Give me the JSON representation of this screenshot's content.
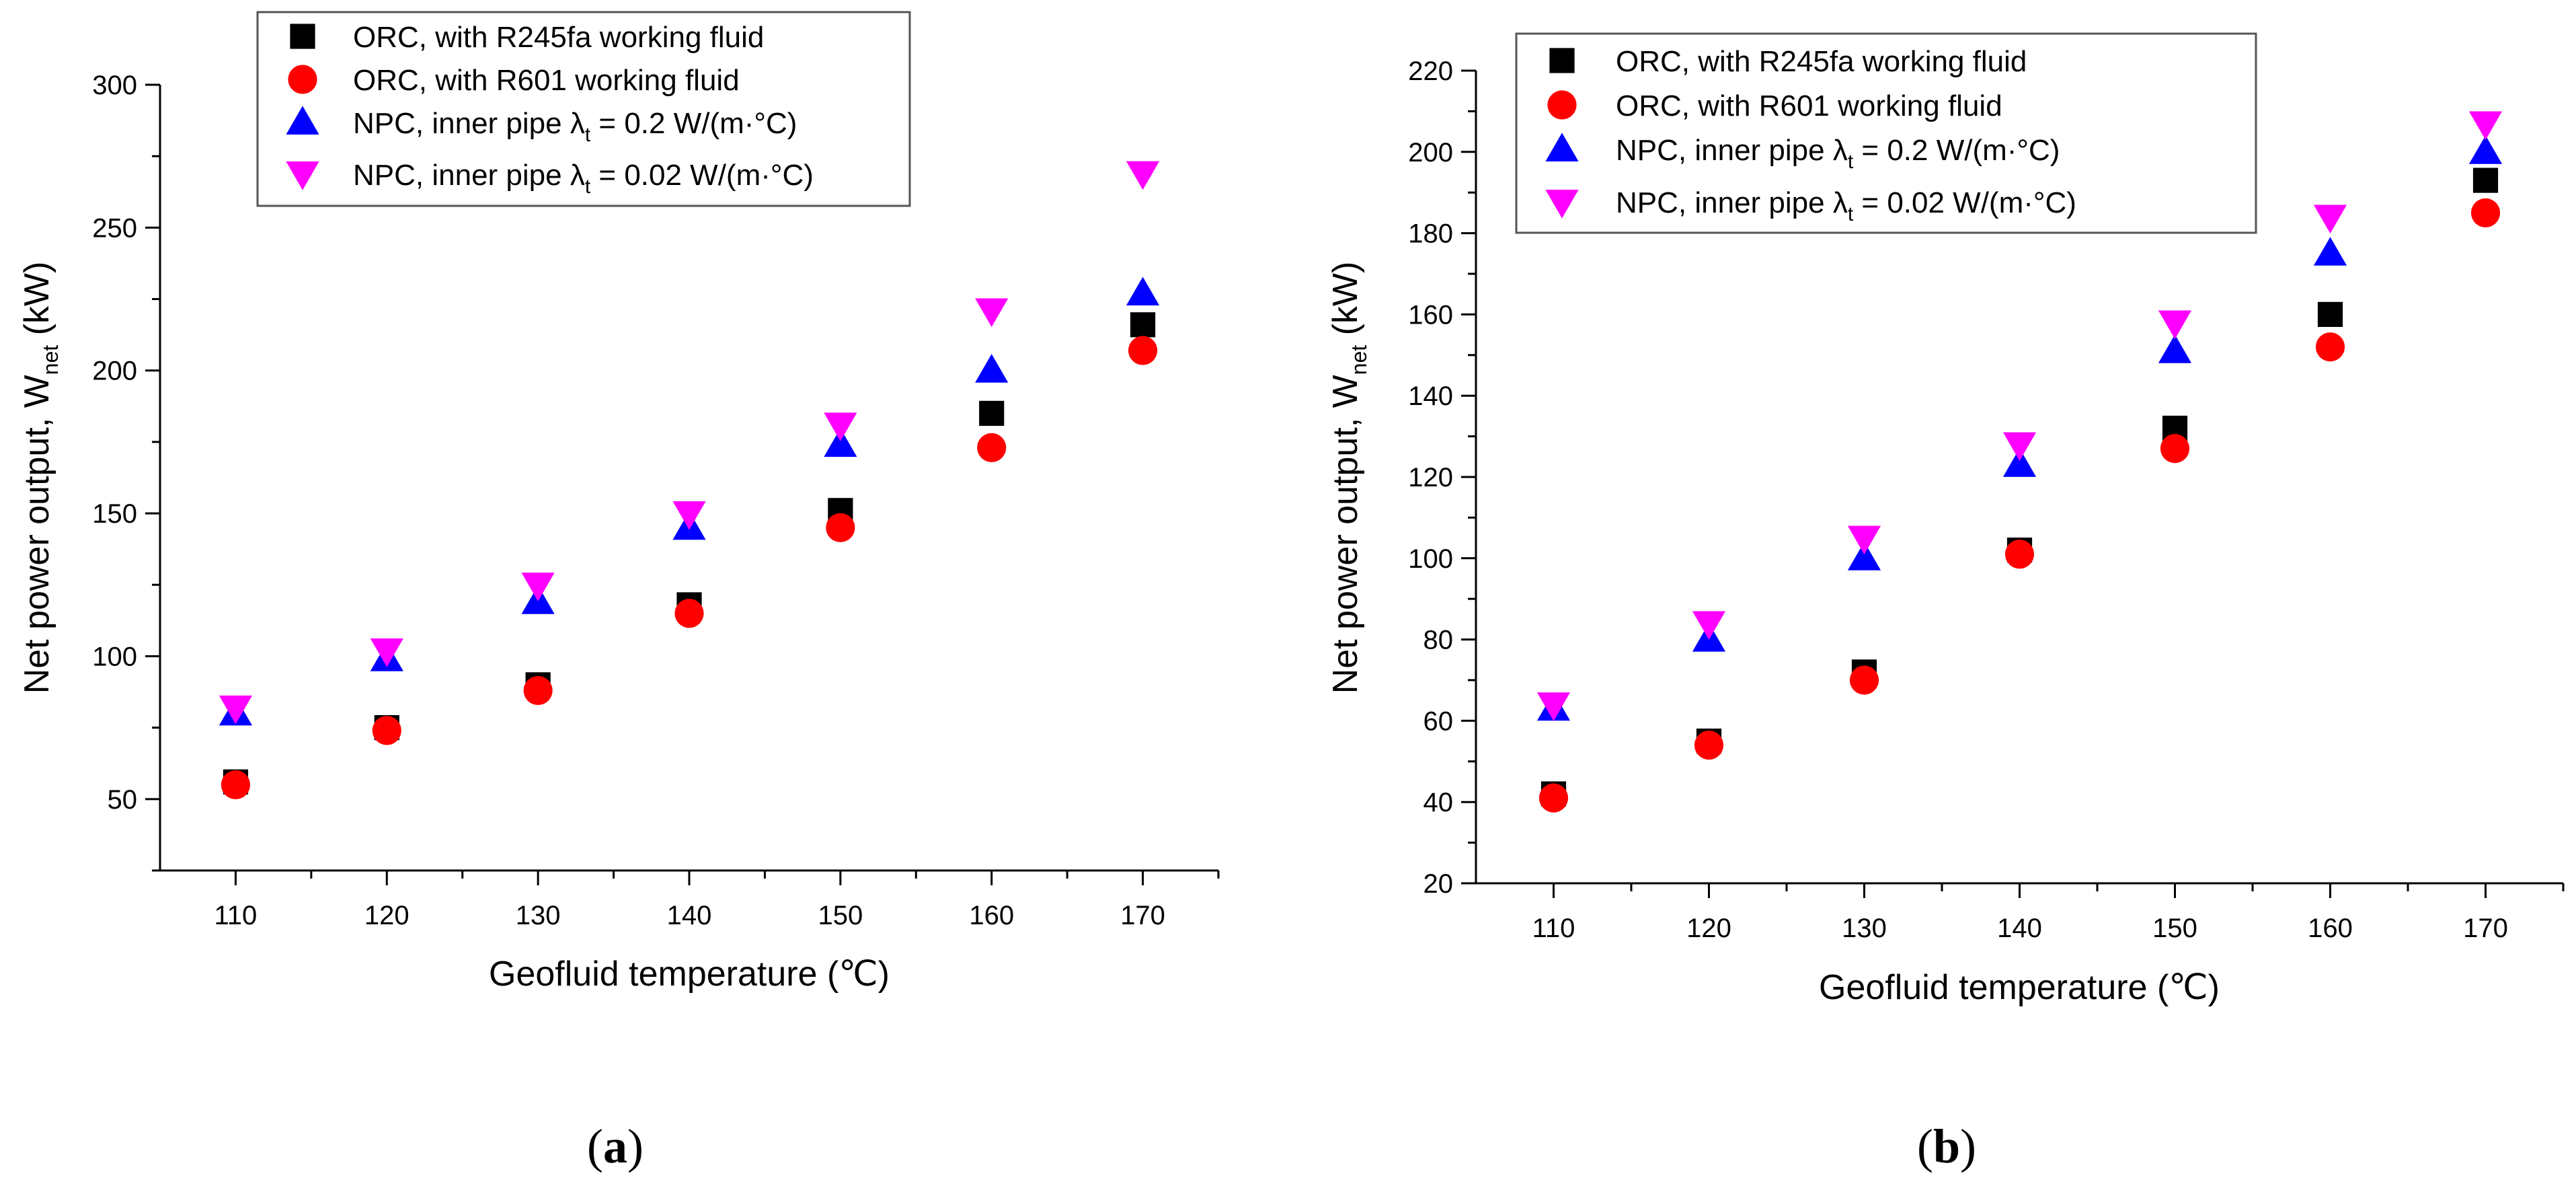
{
  "series_styles": [
    {
      "marker": "square",
      "color": "#000000"
    },
    {
      "marker": "circle",
      "color": "#ff0000"
    },
    {
      "marker": "triangle-up",
      "color": "#0000ff"
    },
    {
      "marker": "triangle-down",
      "color": "#ff00ff"
    }
  ],
  "chart_data": [
    {
      "type": "scatter",
      "panel_label": "a",
      "xlabel": "Geofluid temperature (℃)",
      "ylabel_main": "Net power output, W",
      "ylabel_sub": "net",
      "ylabel_unit": " (kW)",
      "xlim": [
        105,
        175
      ],
      "ylim": [
        25,
        300
      ],
      "xticks": [
        110,
        120,
        130,
        140,
        150,
        160,
        170
      ],
      "yticks": [
        50,
        100,
        150,
        200,
        250,
        300
      ],
      "legend_position": "top",
      "series": [
        {
          "name": "ORC, with R245fa working fluid",
          "name_tail": "",
          "x": [
            110,
            120,
            130,
            140,
            150,
            160,
            170
          ],
          "y": [
            56,
            75,
            90,
            118,
            151,
            185,
            216
          ]
        },
        {
          "name": "ORC, with R601 working fluid",
          "name_tail": "",
          "x": [
            110,
            120,
            130,
            140,
            150,
            160,
            170
          ],
          "y": [
            55,
            74,
            88,
            115,
            145,
            173,
            207
          ]
        },
        {
          "name": "NPC, inner pipe λ",
          "name_sub": "t",
          "name_tail": " = 0.2 W/(m·°C)",
          "x": [
            110,
            120,
            130,
            140,
            150,
            160,
            170
          ],
          "y": [
            80,
            99,
            119,
            145,
            174,
            200,
            227
          ]
        },
        {
          "name": "NPC, inner pipe λ",
          "name_sub": "t",
          "name_tail": " = 0.02 W/(m·°C)",
          "x": [
            110,
            120,
            130,
            140,
            150,
            160,
            170
          ],
          "y": [
            82,
            102,
            125,
            150,
            181,
            221,
            269
          ]
        }
      ]
    },
    {
      "type": "scatter",
      "panel_label": "b",
      "xlabel": "Geofluid temperature (℃)",
      "ylabel_main": "Net power output, W",
      "ylabel_sub": "net",
      "ylabel_unit": " (kW)",
      "xlim": [
        105,
        175
      ],
      "ylim": [
        20,
        220
      ],
      "xticks": [
        110,
        120,
        130,
        140,
        150,
        160,
        170
      ],
      "yticks": [
        20,
        40,
        60,
        80,
        100,
        120,
        140,
        160,
        180,
        200,
        220
      ],
      "legend_position": "top-left",
      "series": [
        {
          "name": "ORC, with R245fa working fluid",
          "name_tail": "",
          "x": [
            110,
            120,
            130,
            140,
            150,
            160,
            170
          ],
          "y": [
            42,
            55,
            72,
            102,
            132,
            160,
            193
          ]
        },
        {
          "name": "ORC, with R601 working fluid",
          "name_tail": "",
          "x": [
            110,
            120,
            130,
            140,
            150,
            160,
            170
          ],
          "y": [
            41,
            54,
            70,
            101,
            127,
            152,
            185
          ]
        },
        {
          "name": "NPC, inner pipe λ",
          "name_sub": "t",
          "name_tail": " = 0.2 W/(m·°C)",
          "x": [
            110,
            120,
            130,
            140,
            150,
            160,
            170
          ],
          "y": [
            63,
            80,
            100,
            123,
            151,
            175,
            200
          ]
        },
        {
          "name": "NPC, inner pipe λ",
          "name_sub": "t",
          "name_tail": " = 0.02 W/(m·°C)",
          "x": [
            110,
            120,
            130,
            140,
            150,
            160,
            170
          ],
          "y": [
            64,
            84,
            105,
            128,
            158,
            184,
            207
          ]
        }
      ]
    }
  ]
}
